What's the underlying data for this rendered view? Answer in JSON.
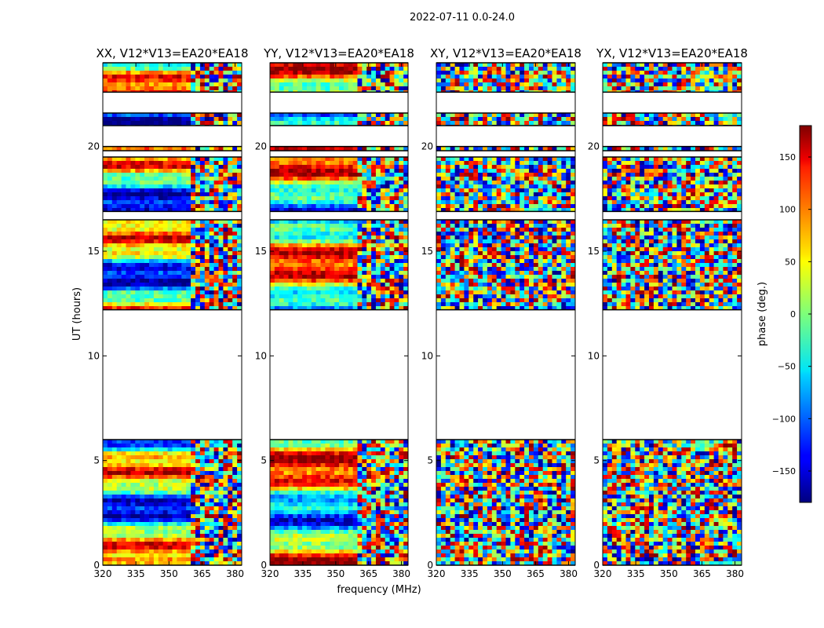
{
  "figure": {
    "suptitle": "2022-07-11 0.0-24.0"
  },
  "colors": {
    "background": "#ffffff",
    "axis": "#000000",
    "gap": "#ffffff"
  },
  "chart_data": [
    {
      "type": "heatmap",
      "title": "XX, V12*V13=EA20*EA18",
      "xlabel": "",
      "ylabel": "UT (hours)",
      "xlim": [
        320,
        383
      ],
      "ylim": [
        0,
        24
      ],
      "xticks": [
        320,
        335,
        350,
        365,
        380
      ],
      "yticks": [
        0,
        5,
        10,
        15,
        20
      ],
      "x_tick_labels": [
        "320",
        "335",
        "350",
        "365",
        "380"
      ],
      "y_tick_labels": [
        "0",
        "5",
        "10",
        "15",
        "20"
      ],
      "value_units": "phase (deg.)",
      "data_segments_hours": [
        [
          0.0,
          6.0
        ],
        [
          12.2,
          16.5
        ],
        [
          16.9,
          19.5
        ],
        [
          19.8,
          20.0
        ],
        [
          21.0,
          21.6
        ],
        [
          22.6,
          24.0
        ]
      ],
      "description": "Coherent phase bands below 362 MHz with noisy phase above 362 MHz"
    },
    {
      "type": "heatmap",
      "title": "YY, V12*V13=EA20*EA18",
      "xlabel": "frequency (MHz)",
      "ylabel": "",
      "xlim": [
        320,
        383
      ],
      "ylim": [
        0,
        24
      ],
      "xticks": [
        320,
        335,
        350,
        365,
        380
      ],
      "yticks": [
        0,
        5,
        10,
        15,
        20
      ],
      "x_tick_labels": [
        "320",
        "335",
        "350",
        "365",
        "380"
      ],
      "y_tick_labels": [
        "0",
        "5",
        "10",
        "15",
        "20"
      ],
      "value_units": "phase (deg.)",
      "data_segments_hours": [
        [
          0.0,
          6.0
        ],
        [
          12.2,
          16.5
        ],
        [
          16.9,
          19.5
        ],
        [
          19.8,
          20.0
        ],
        [
          21.0,
          21.6
        ],
        [
          22.6,
          24.0
        ]
      ],
      "description": "Coherent phase bands below 362 MHz with noisy phase above 362 MHz"
    },
    {
      "type": "heatmap",
      "title": "XY, V12*V13=EA20*EA18",
      "xlabel": "",
      "ylabel": "",
      "xlim": [
        320,
        383
      ],
      "ylim": [
        0,
        24
      ],
      "xticks": [
        320,
        335,
        350,
        365,
        380
      ],
      "yticks": [
        0,
        5,
        10,
        15,
        20
      ],
      "x_tick_labels": [
        "320",
        "335",
        "350",
        "365",
        "380"
      ],
      "y_tick_labels": [
        "0",
        "5",
        "10",
        "15",
        "20"
      ],
      "value_units": "phase (deg.)",
      "data_segments_hours": [
        [
          0.0,
          6.0
        ],
        [
          12.2,
          16.5
        ],
        [
          16.9,
          19.5
        ],
        [
          19.8,
          20.0
        ],
        [
          21.0,
          21.6
        ],
        [
          22.6,
          24.0
        ]
      ],
      "description": "Mostly random phase noise across all frequencies"
    },
    {
      "type": "heatmap",
      "title": "YX, V12*V13=EA20*EA18",
      "xlabel": "",
      "ylabel": "",
      "xlim": [
        320,
        383
      ],
      "ylim": [
        0,
        24
      ],
      "xticks": [
        320,
        335,
        350,
        365,
        380
      ],
      "yticks": [
        0,
        5,
        10,
        15,
        20
      ],
      "x_tick_labels": [
        "320",
        "335",
        "350",
        "365",
        "380"
      ],
      "y_tick_labels": [
        "0",
        "5",
        "10",
        "15",
        "20"
      ],
      "value_units": "phase (deg.)",
      "data_segments_hours": [
        [
          0.0,
          6.0
        ],
        [
          12.2,
          16.5
        ],
        [
          16.9,
          19.5
        ],
        [
          19.8,
          20.0
        ],
        [
          21.0,
          21.6
        ],
        [
          22.6,
          24.0
        ]
      ],
      "description": "Mostly random phase noise across all frequencies"
    }
  ],
  "colorbar": {
    "label": "phase (deg.)",
    "range": [
      -180,
      180
    ],
    "ticks": [
      150,
      100,
      50,
      0,
      -50,
      -100,
      -150
    ],
    "tick_labels": [
      "150",
      "100",
      "50",
      "0",
      "−50",
      "−100",
      "−150"
    ],
    "colormap": "jet"
  }
}
